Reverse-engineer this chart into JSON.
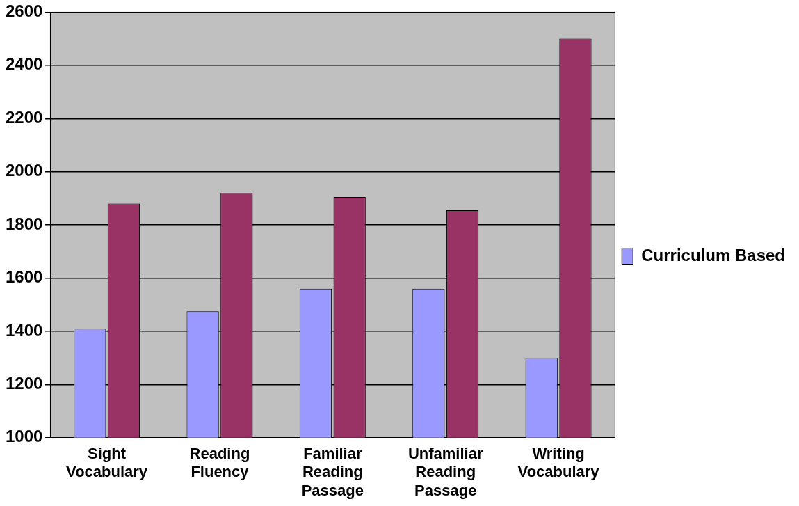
{
  "chart_data": {
    "type": "bar",
    "categories": [
      "Sight Vocabulary",
      "Reading Fluency",
      "Familiar Reading Passage",
      "Unfamiliar Reading Passage",
      "Writing Vocabulary"
    ],
    "series": [
      {
        "name": "Curriculum Based",
        "color": "#9999ff",
        "values": [
          1410,
          1475,
          1560,
          1560,
          1300
        ]
      },
      {
        "color": "#993366",
        "values": [
          1880,
          1920,
          1905,
          1855,
          2500
        ]
      }
    ],
    "ylim": [
      1000,
      2600
    ],
    "yticks": [
      1000,
      1200,
      1400,
      1600,
      1800,
      2000,
      2200,
      2400,
      2600
    ],
    "grid": "y",
    "legend": "right"
  }
}
